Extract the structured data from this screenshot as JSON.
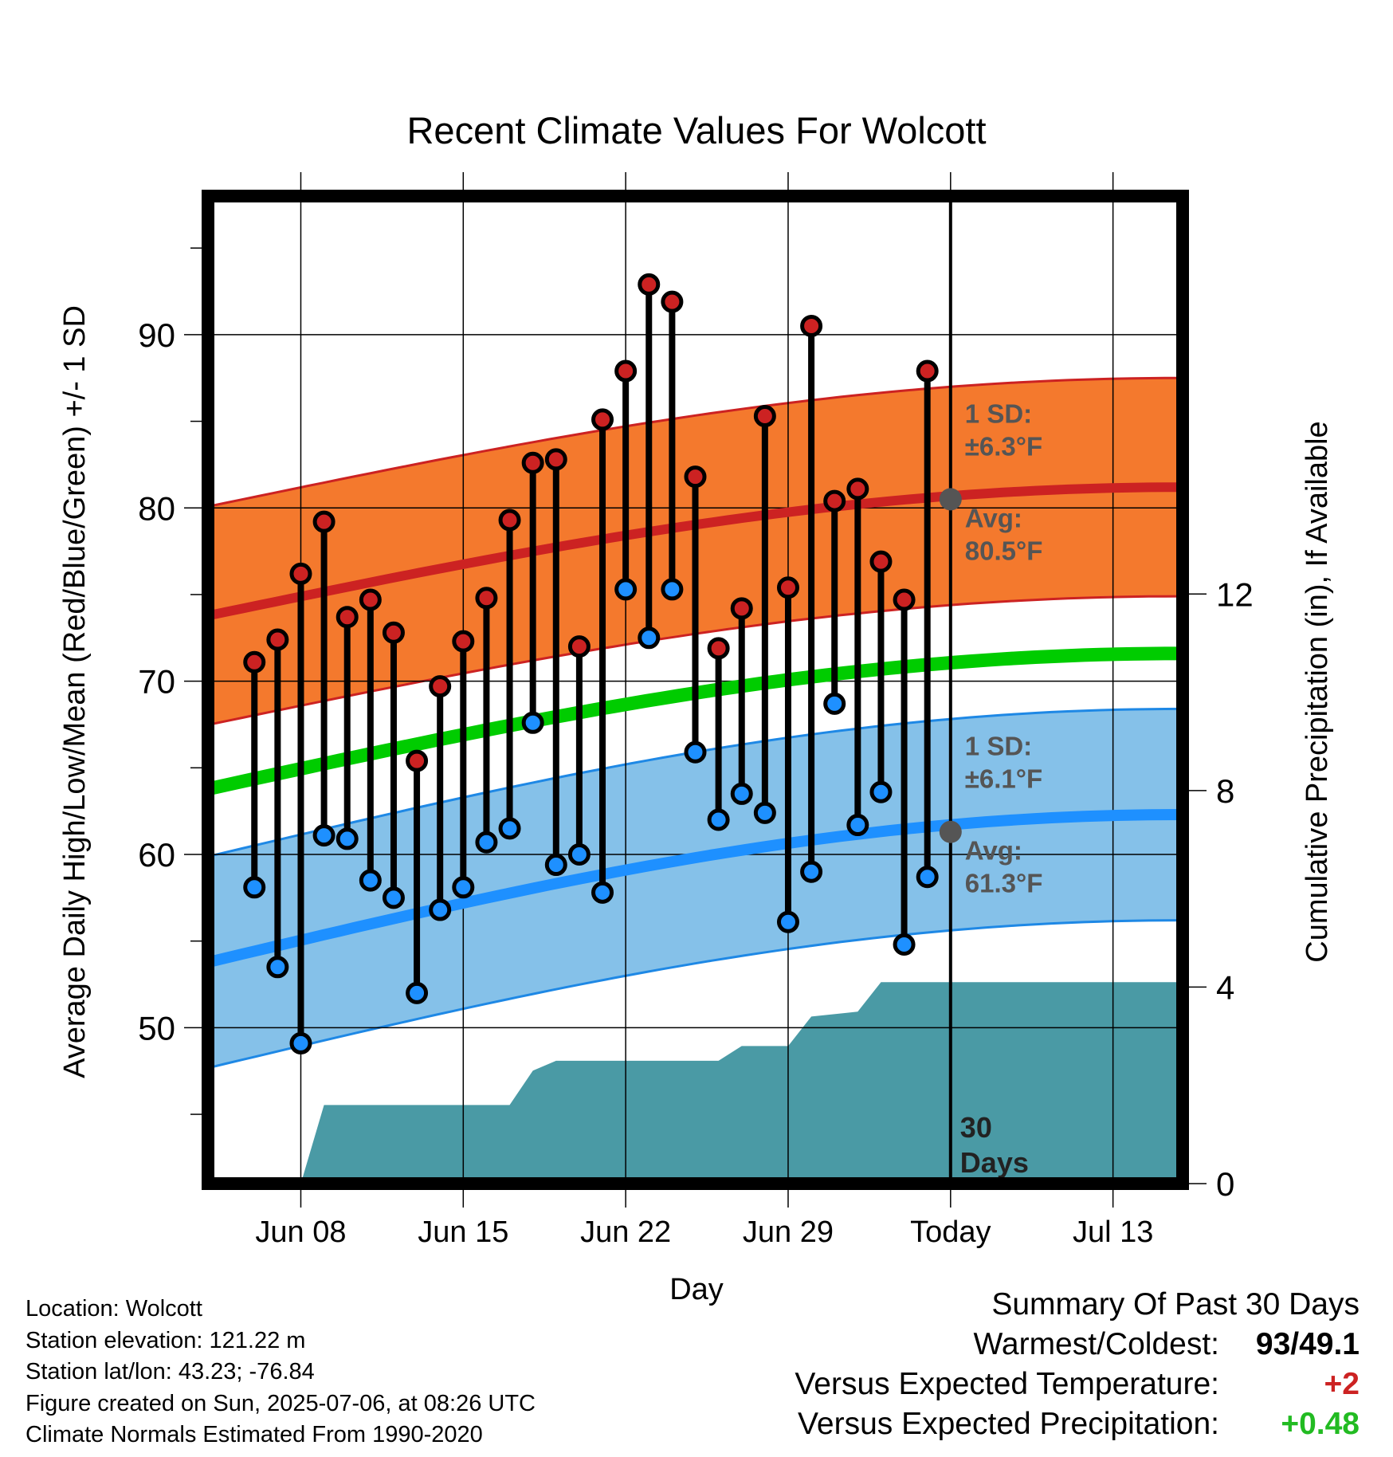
{
  "chart_data": {
    "type": "line",
    "title": "Recent Climate Values For Wolcott",
    "xlabel": "Day",
    "ylabel": "Average Daily High/Low/Mean (Red/Blue/Green) +/- 1 SD",
    "y2label": "Cumulative Precipitation (in), If Available",
    "ylim": [
      41,
      98
    ],
    "y2lim": [
      0,
      20.1
    ],
    "xlim": [
      "2025-06-04",
      "2025-07-16"
    ],
    "yticks": [
      50,
      60,
      70,
      80,
      90
    ],
    "y2ticks": [
      0,
      4,
      8,
      12
    ],
    "xticks": [
      {
        "date": "2025-06-08",
        "label": "Jun 08"
      },
      {
        "date": "2025-06-15",
        "label": "Jun 15"
      },
      {
        "date": "2025-06-22",
        "label": "Jun 22"
      },
      {
        "date": "2025-06-29",
        "label": "Jun 29"
      },
      {
        "date": "2025-07-06",
        "label": "Today"
      },
      {
        "date": "2025-07-13",
        "label": "Jul 13"
      }
    ],
    "grid": true,
    "today": "2025-07-06",
    "today_label": "30\nDays",
    "dates": [
      "2025-06-06",
      "2025-06-07",
      "2025-06-08",
      "2025-06-09",
      "2025-06-10",
      "2025-06-11",
      "2025-06-12",
      "2025-06-13",
      "2025-06-14",
      "2025-06-15",
      "2025-06-16",
      "2025-06-17",
      "2025-06-18",
      "2025-06-19",
      "2025-06-20",
      "2025-06-21",
      "2025-06-22",
      "2025-06-23",
      "2025-06-24",
      "2025-06-25",
      "2025-06-26",
      "2025-06-27",
      "2025-06-28",
      "2025-06-29",
      "2025-06-30",
      "2025-07-01",
      "2025-07-02",
      "2025-07-03",
      "2025-07-04",
      "2025-07-05"
    ],
    "series": [
      {
        "name": "High",
        "color": "#cc2222",
        "values": [
          71.1,
          72.4,
          76.2,
          79.2,
          73.7,
          74.7,
          72.8,
          65.4,
          69.7,
          72.3,
          74.8,
          79.3,
          82.6,
          82.8,
          72.0,
          85.1,
          87.9,
          92.9,
          91.9,
          81.8,
          71.9,
          74.2,
          85.3,
          75.4,
          90.5,
          80.4,
          81.1,
          76.9,
          74.7,
          87.9
        ]
      },
      {
        "name": "Low",
        "color": "#1e90ff",
        "values": [
          58.1,
          53.5,
          49.1,
          61.1,
          60.9,
          58.5,
          57.5,
          52.0,
          56.8,
          58.1,
          60.7,
          61.5,
          67.6,
          59.4,
          60.0,
          57.8,
          75.3,
          72.5,
          75.3,
          65.9,
          62.0,
          63.5,
          62.4,
          56.1,
          59.0,
          68.7,
          61.7,
          63.6,
          54.8,
          58.7
        ]
      }
    ],
    "normals": {
      "high_avg": {
        "start": 73.8,
        "end": 81.2,
        "color": "#cc2222"
      },
      "high_sd": 6.3,
      "mean_avg": {
        "start": 63.8,
        "end": 71.6,
        "color": "#00cc00"
      },
      "low_avg": {
        "start": 53.8,
        "end": 62.3,
        "color": "#1e90ff"
      },
      "low_sd": 6.1,
      "high_band_color": "#f4792d",
      "low_band_color": "#85c1e9"
    },
    "precip_cumulative": {
      "color": "#4a9aa5",
      "points": [
        [
          "2025-06-08",
          0
        ],
        [
          "2025-06-09",
          1.6
        ],
        [
          "2025-06-17",
          1.6
        ],
        [
          "2025-06-18",
          2.3
        ],
        [
          "2025-06-19",
          2.5
        ],
        [
          "2025-06-26",
          2.5
        ],
        [
          "2025-06-27",
          2.8
        ],
        [
          "2025-06-29",
          2.8
        ],
        [
          "2025-06-30",
          3.4
        ],
        [
          "2025-07-02",
          3.5
        ],
        [
          "2025-07-03",
          4.1
        ],
        [
          "2025-07-16",
          4.1
        ]
      ]
    },
    "annotations": {
      "high_sd_label": "1 SD:",
      "high_sd_value": "±6.3°F",
      "high_avg_label": "Avg:",
      "high_avg_value": "80.5°F",
      "high_avg_today": 80.5,
      "low_sd_label": "1 SD:",
      "low_sd_value": "±6.1°F",
      "low_avg_label": "Avg:",
      "low_avg_value": "61.3°F",
      "low_avg_today": 61.3
    }
  },
  "info": {
    "location": "Location: Wolcott",
    "elevation": "Station elevation: 121.22 m",
    "latlon": "Station lat/lon: 43.23; -76.84",
    "created": "Figure created on Sun, 2025-07-06, at 08:26 UTC",
    "normals": "Climate Normals Estimated From 1990-2020"
  },
  "summary": {
    "title": "Summary Of Past 30 Days",
    "warmest_label": "Warmest/Coldest:",
    "warmest_value": "93/49.1",
    "temp_label": "Versus Expected Temperature:",
    "temp_value": "+2",
    "precip_label": "Versus Expected Precipitation:",
    "precip_value": "+0.48"
  }
}
